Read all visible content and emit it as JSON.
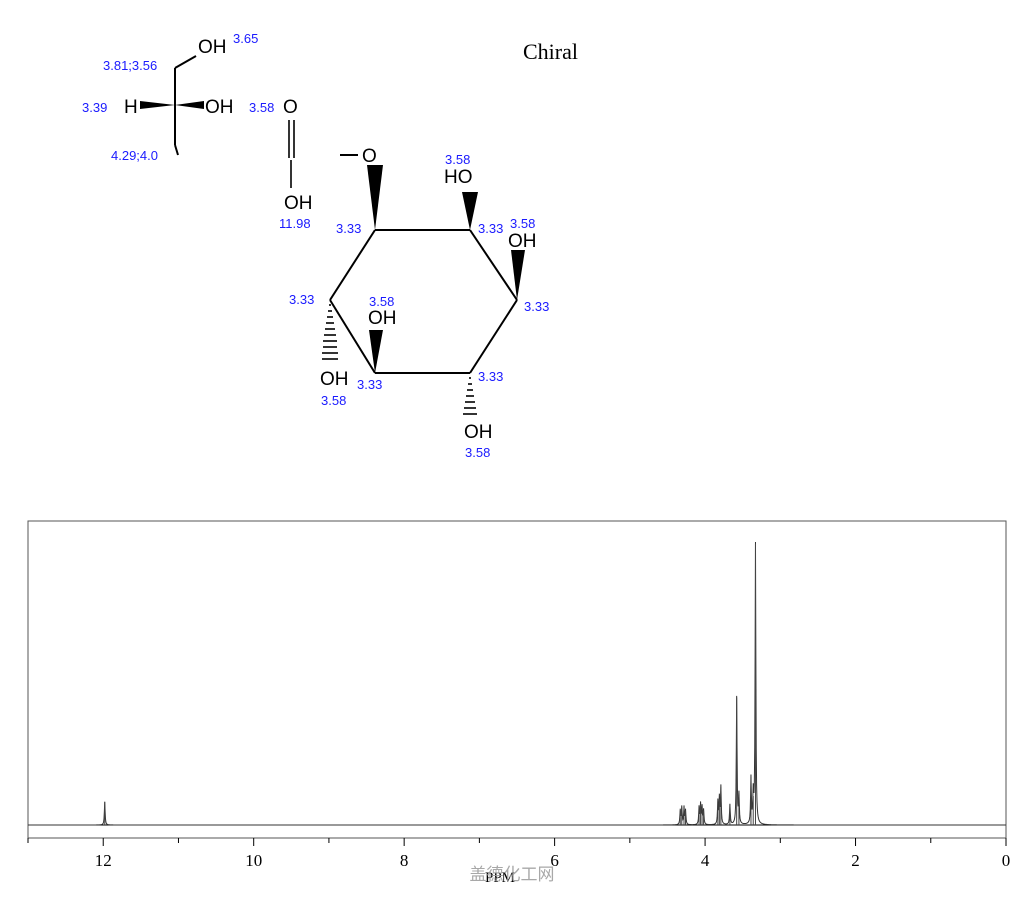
{
  "structure": {
    "label": "Chiral",
    "atoms": {
      "oh_top": "OH",
      "h_left": "H",
      "oh_mid": "OH",
      "o_carbonyl": "O",
      "oh_acid": "OH",
      "o_ether": "O",
      "ho_ring1": "HO",
      "oh_ring2": "OH",
      "oh_ring3": "OH",
      "oh_ring4": "OH",
      "oh_ring5": "OH"
    },
    "shifts": {
      "s_365": "3.65",
      "s_381": "3.81;3.56",
      "s_339": "3.39",
      "s_429": "4.29;4.0",
      "s_358_c": "3.58",
      "s_1198": "11.98",
      "s_358_a": "3.58",
      "s_333_a": "3.33",
      "s_333_b": "3.33",
      "s_358_b": "3.58",
      "s_333_c": "3.33",
      "s_333_d": "3.33",
      "s_358_d": "3.58",
      "s_333_e": "3.33",
      "s_358_e": "3.58",
      "s_333_f": "3.33",
      "s_358_f": "3.58"
    }
  },
  "chart_data": {
    "type": "line",
    "xlabel": "PPM",
    "x_ticks": [
      "12",
      "10",
      "8",
      "6",
      "4",
      "2",
      "0"
    ],
    "x_tick_values": [
      12,
      10,
      8,
      6,
      4,
      2,
      0
    ],
    "xlim": [
      13,
      0
    ],
    "x_reversed": true,
    "grid": false,
    "peaks": [
      {
        "ppm": 11.98,
        "intensity": 0.08
      },
      {
        "ppm": 4.33,
        "intensity": 0.05
      },
      {
        "ppm": 4.31,
        "intensity": 0.06
      },
      {
        "ppm": 4.28,
        "intensity": 0.06
      },
      {
        "ppm": 4.26,
        "intensity": 0.05
      },
      {
        "ppm": 4.08,
        "intensity": 0.06
      },
      {
        "ppm": 4.06,
        "intensity": 0.07
      },
      {
        "ppm": 4.04,
        "intensity": 0.06
      },
      {
        "ppm": 4.02,
        "intensity": 0.05
      },
      {
        "ppm": 3.83,
        "intensity": 0.08
      },
      {
        "ppm": 3.81,
        "intensity": 0.09
      },
      {
        "ppm": 3.79,
        "intensity": 0.13
      },
      {
        "ppm": 3.67,
        "intensity": 0.07
      },
      {
        "ppm": 3.58,
        "intensity": 0.44
      },
      {
        "ppm": 3.55,
        "intensity": 0.1
      },
      {
        "ppm": 3.39,
        "intensity": 0.16
      },
      {
        "ppm": 3.36,
        "intensity": 0.1
      },
      {
        "ppm": 3.33,
        "intensity": 0.97
      }
    ]
  },
  "watermark": "盖德化工网"
}
